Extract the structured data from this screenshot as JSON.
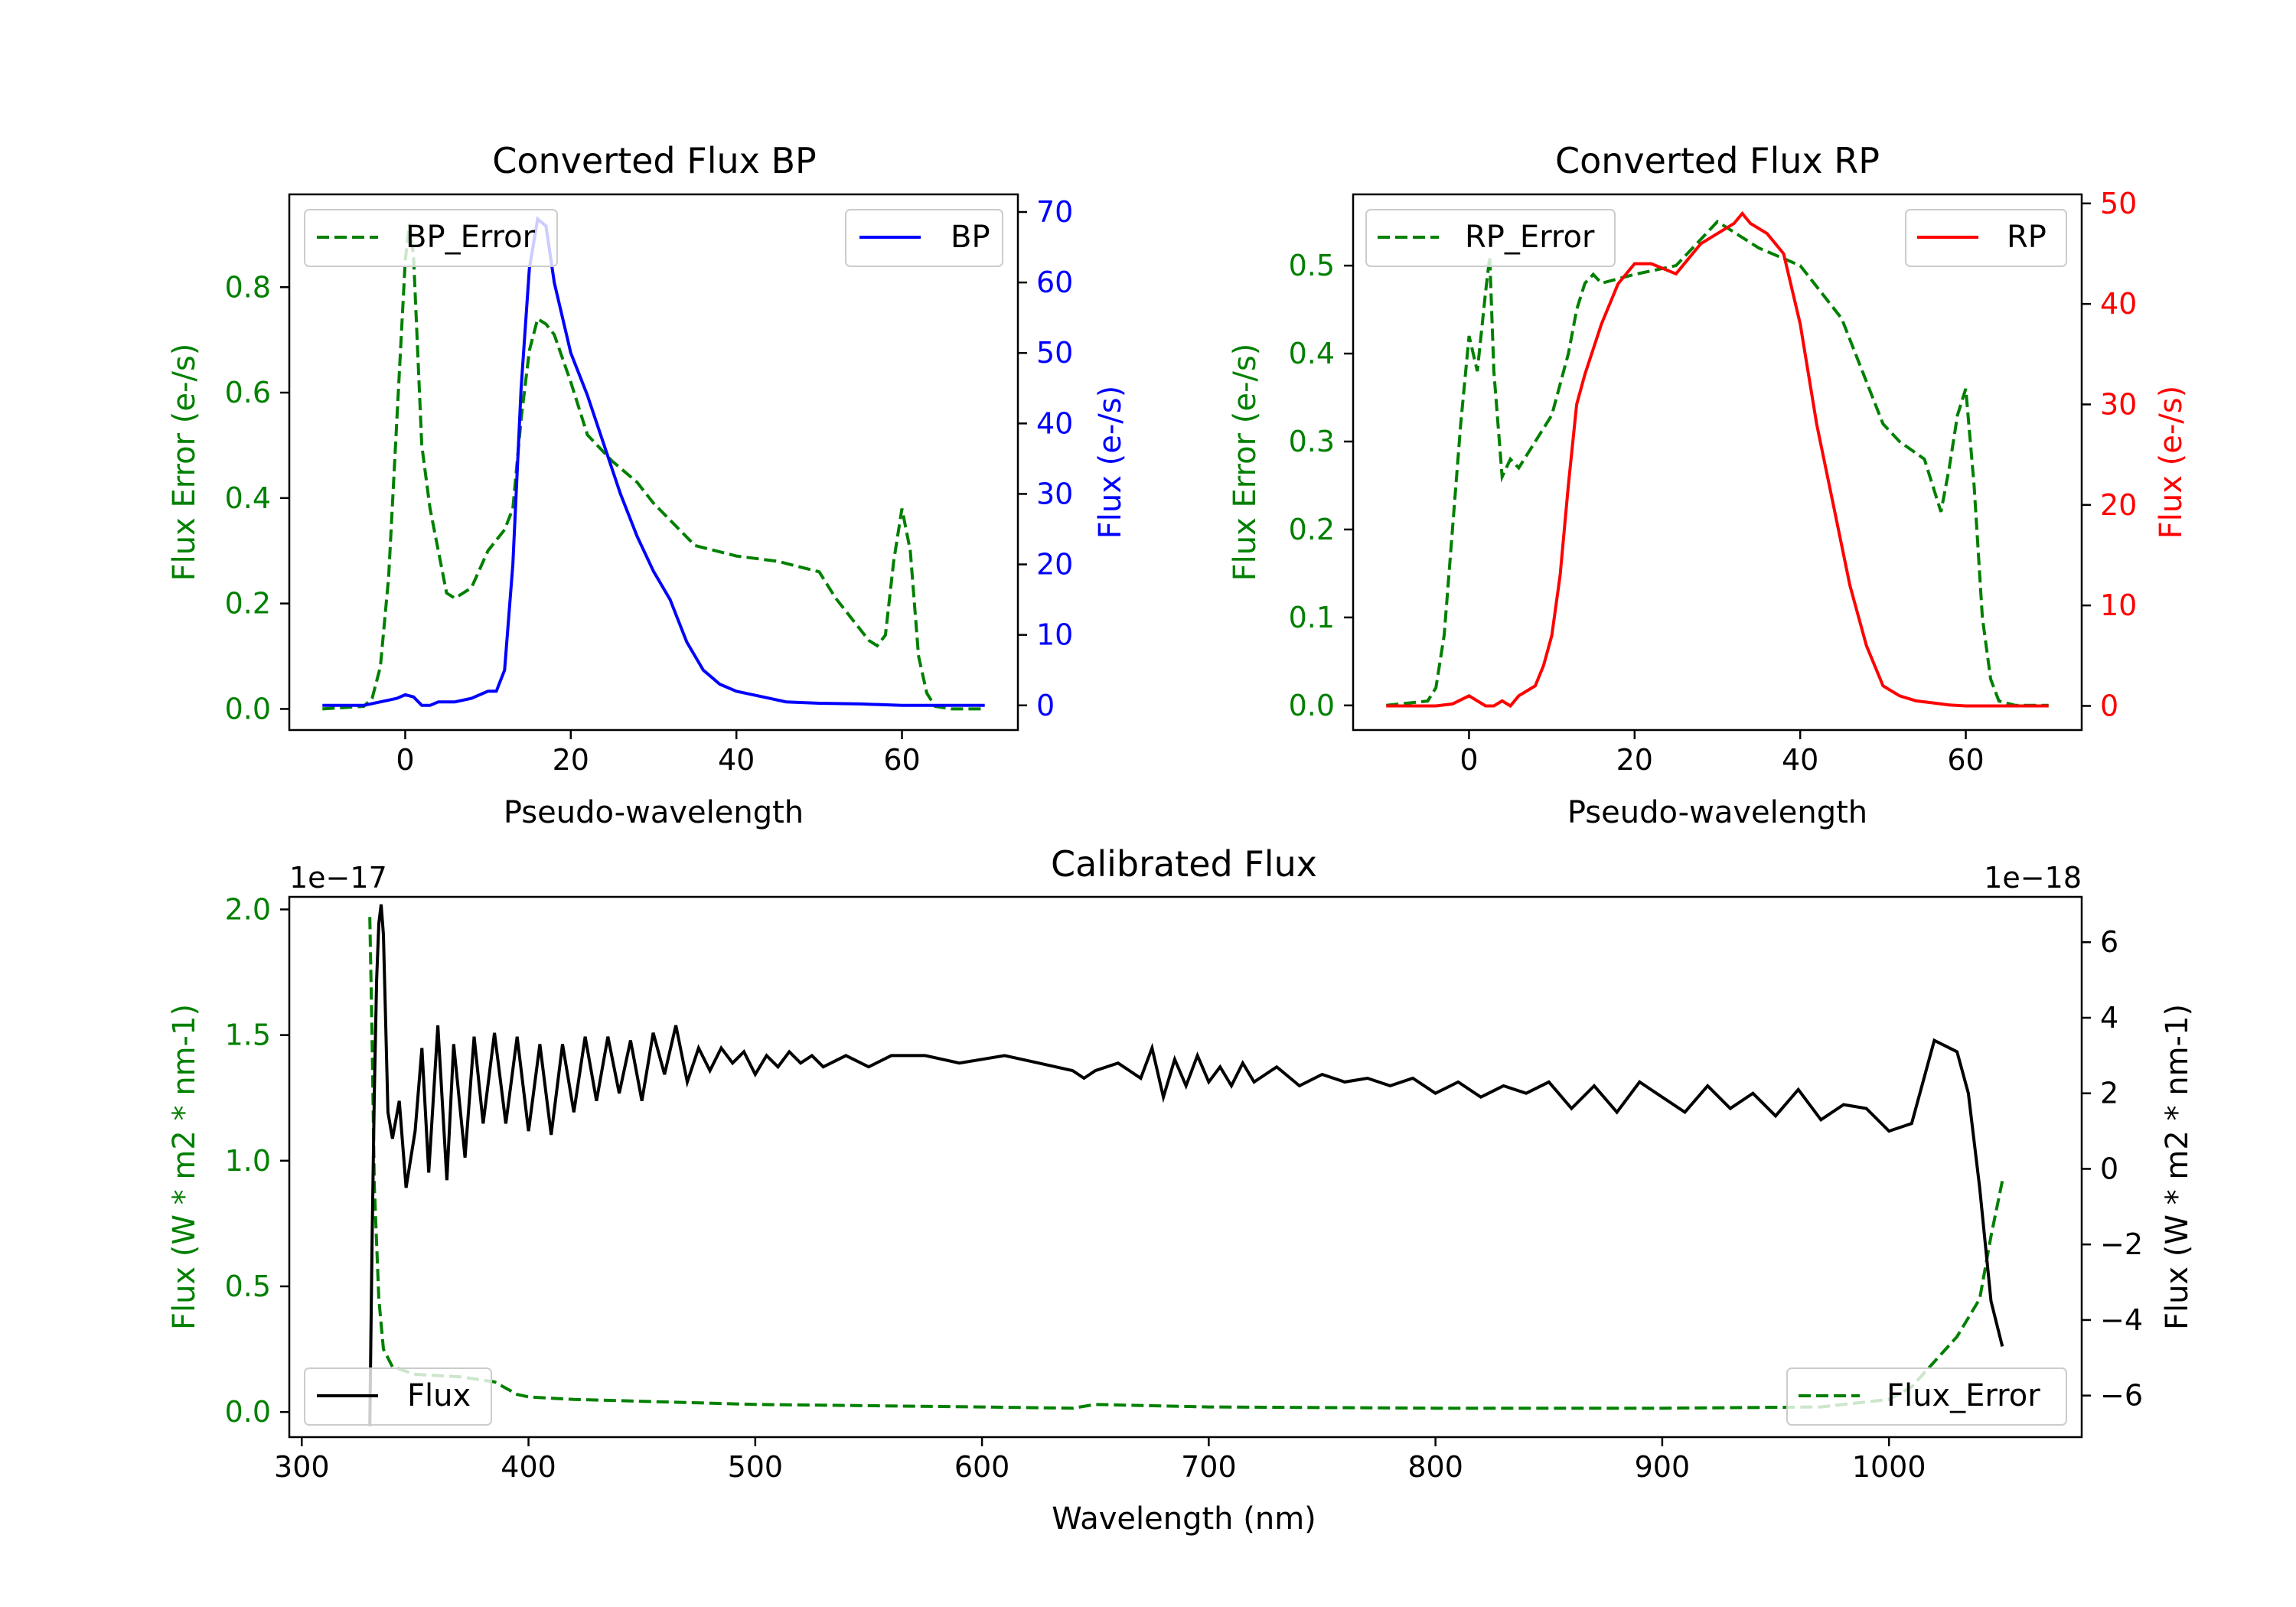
{
  "colors": {
    "bp": "#0000ff",
    "rp": "#ff0000",
    "error": "#008000",
    "flux": "#000000",
    "axis": "#000000"
  },
  "chart_data": [
    {
      "id": "bp",
      "type": "line",
      "title": "Converted Flux BP",
      "xlabel": "Pseudo-wavelength",
      "xlim": [
        -14,
        74
      ],
      "xticks": [
        0,
        20,
        40,
        60
      ],
      "left_axis": {
        "label": "Flux Error (e-/s)",
        "lim": [
          -0.04,
          0.976
        ],
        "ticks": [
          0.0,
          0.2,
          0.4,
          0.6,
          0.8
        ],
        "tick_labels": [
          "0.0",
          "0.2",
          "0.4",
          "0.6",
          "0.8"
        ]
      },
      "right_axis": {
        "label": "Flux (e-/s)",
        "lim": [
          -3.5,
          72.5
        ],
        "ticks": [
          0,
          10,
          20,
          30,
          40,
          50,
          60,
          70
        ],
        "tick_labels": [
          "0",
          "10",
          "20",
          "30",
          "40",
          "50",
          "60",
          "70"
        ]
      },
      "legend_left": {
        "label": "BP_Error",
        "position": "upper-left"
      },
      "legend_right": {
        "label": "BP",
        "position": "upper-right"
      },
      "series": [
        {
          "name": "BP_Error",
          "axis": "left",
          "style": "dashed",
          "x": [
            -10,
            -5,
            -4,
            -3,
            -2,
            -1,
            0,
            0.5,
            1,
            2,
            3,
            4,
            5,
            6,
            8,
            10,
            12,
            13,
            14,
            15,
            16,
            17,
            18,
            20,
            22,
            25,
            28,
            30,
            35,
            40,
            45,
            50,
            52,
            54,
            56,
            57,
            58,
            59,
            60,
            61,
            62,
            63,
            64,
            66,
            68,
            70
          ],
          "y": [
            0.0,
            0.005,
            0.02,
            0.08,
            0.25,
            0.55,
            0.85,
            0.92,
            0.86,
            0.5,
            0.38,
            0.3,
            0.22,
            0.21,
            0.23,
            0.3,
            0.34,
            0.38,
            0.55,
            0.68,
            0.74,
            0.73,
            0.71,
            0.62,
            0.52,
            0.47,
            0.43,
            0.39,
            0.31,
            0.29,
            0.28,
            0.26,
            0.21,
            0.17,
            0.13,
            0.12,
            0.14,
            0.28,
            0.38,
            0.3,
            0.1,
            0.03,
            0.005,
            0.0,
            0.0,
            0.0
          ]
        },
        {
          "name": "BP",
          "axis": "right",
          "style": "solid",
          "x": [
            -10,
            -5,
            -3,
            -1,
            0,
            1,
            2,
            3,
            4,
            6,
            8,
            10,
            11,
            12,
            13,
            14,
            15,
            16,
            17,
            18,
            19,
            20,
            22,
            24,
            26,
            28,
            30,
            32,
            34,
            36,
            38,
            40,
            42,
            44,
            46,
            50,
            55,
            60,
            65,
            70
          ],
          "y": [
            0,
            0,
            0.5,
            1,
            1.5,
            1.2,
            0,
            0,
            0.5,
            0.5,
            1,
            2,
            2,
            5,
            20,
            45,
            62,
            69,
            68,
            60,
            55,
            50,
            44,
            37,
            30,
            24,
            19,
            15,
            9,
            5,
            3,
            2,
            1.5,
            1,
            0.5,
            0.3,
            0.2,
            0,
            0,
            0
          ]
        }
      ]
    },
    {
      "id": "rp",
      "type": "line",
      "title": "Converted Flux RP",
      "xlabel": "Pseudo-wavelength",
      "xlim": [
        -14,
        74
      ],
      "xticks": [
        0,
        20,
        40,
        60
      ],
      "left_axis": {
        "label": "Flux Error (e-/s)",
        "lim": [
          -0.028,
          0.581
        ],
        "ticks": [
          0.0,
          0.1,
          0.2,
          0.3,
          0.4,
          0.5
        ],
        "tick_labels": [
          "0.0",
          "0.1",
          "0.2",
          "0.3",
          "0.4",
          "0.5"
        ]
      },
      "right_axis": {
        "label": "Flux (e-/s)",
        "lim": [
          -2.4,
          50.9
        ],
        "ticks": [
          0,
          10,
          20,
          30,
          40,
          50
        ],
        "tick_labels": [
          "0",
          "10",
          "20",
          "30",
          "40",
          "50"
        ]
      },
      "legend_left": {
        "label": "RP_Error",
        "position": "upper-left"
      },
      "legend_right": {
        "label": "RP",
        "position": "upper-right"
      },
      "series": [
        {
          "name": "RP_Error",
          "axis": "left",
          "style": "dashed",
          "x": [
            -10,
            -5,
            -4,
            -3,
            -2,
            -1,
            0,
            1,
            2,
            2.5,
            3,
            4,
            5,
            6,
            8,
            10,
            12,
            13,
            14,
            15,
            16,
            20,
            25,
            28,
            30,
            35,
            40,
            45,
            50,
            52,
            55,
            56,
            57,
            58,
            59,
            60,
            61,
            62,
            63,
            64,
            66,
            70
          ],
          "y": [
            0.0,
            0.005,
            0.02,
            0.08,
            0.2,
            0.32,
            0.42,
            0.38,
            0.47,
            0.51,
            0.38,
            0.26,
            0.28,
            0.27,
            0.3,
            0.33,
            0.4,
            0.45,
            0.48,
            0.49,
            0.48,
            0.49,
            0.5,
            0.53,
            0.55,
            0.52,
            0.5,
            0.44,
            0.32,
            0.3,
            0.28,
            0.25,
            0.22,
            0.27,
            0.33,
            0.36,
            0.25,
            0.1,
            0.03,
            0.005,
            0.0,
            0.0
          ]
        },
        {
          "name": "RP",
          "axis": "right",
          "style": "solid",
          "x": [
            -10,
            -4,
            -2,
            0,
            2,
            3,
            4,
            5,
            6,
            8,
            9,
            10,
            11,
            12,
            13,
            14,
            16,
            18,
            20,
            22,
            25,
            28,
            30,
            32,
            33,
            34,
            36,
            38,
            40,
            42,
            44,
            46,
            48,
            50,
            52,
            54,
            56,
            58,
            60,
            65,
            70
          ],
          "y": [
            0,
            0,
            0.2,
            1,
            0,
            0,
            0.5,
            0,
            1,
            2,
            4,
            7,
            13,
            22,
            30,
            33,
            38,
            42,
            44,
            44,
            43,
            46,
            47,
            48,
            49,
            48,
            47,
            45,
            38,
            28,
            20,
            12,
            6,
            2,
            1,
            0.5,
            0.3,
            0.1,
            0,
            0,
            0
          ]
        }
      ]
    },
    {
      "id": "calibrated",
      "type": "line",
      "title": "Calibrated Flux",
      "xlabel": "Wavelength (nm)",
      "xlim": [
        294.5,
        1085
      ],
      "xticks": [
        300,
        400,
        500,
        600,
        700,
        800,
        900,
        1000
      ],
      "left_axis": {
        "label": "Flux (W * m2 * nm-1)",
        "offset_text": "1e−17",
        "lim": [
          -0.1,
          2.05
        ],
        "ticks": [
          0.0,
          0.5,
          1.0,
          1.5,
          2.0
        ],
        "tick_labels": [
          "0.0",
          "0.5",
          "1.0",
          "1.5",
          "2.0"
        ]
      },
      "right_axis": {
        "label": "Flux (W * m2 * nm-1)",
        "offset_text": "1e−18",
        "lim": [
          -7.1,
          7.2
        ],
        "ticks": [
          -6,
          -4,
          -2,
          0,
          2,
          4,
          6
        ],
        "tick_labels": [
          "−6",
          "−4",
          "−2",
          "0",
          "2",
          "4",
          "6"
        ]
      },
      "legend_left": {
        "label": "Flux",
        "position": "lower-left"
      },
      "legend_right": {
        "label": "Flux_Error",
        "position": "lower-right"
      },
      "series": [
        {
          "name": "Flux_Error",
          "axis": "left",
          "style": "dashed",
          "x": [
            330,
            331,
            332,
            334,
            336,
            340,
            350,
            370,
            385,
            395,
            400,
            420,
            500,
            600,
            640,
            650,
            700,
            800,
            900,
            970,
            1000,
            1010,
            1020,
            1030,
            1040,
            1045,
            1050
          ],
          "y": [
            1.97,
            1.5,
            0.9,
            0.45,
            0.25,
            0.18,
            0.15,
            0.14,
            0.12,
            0.07,
            0.06,
            0.05,
            0.03,
            0.02,
            0.015,
            0.03,
            0.02,
            0.015,
            0.015,
            0.02,
            0.05,
            0.1,
            0.2,
            0.3,
            0.45,
            0.7,
            0.92
          ]
        },
        {
          "name": "Flux",
          "axis": "right",
          "style": "solid",
          "x": [
            330,
            331,
            332,
            333,
            334,
            335,
            336,
            338,
            340,
            343,
            346,
            350,
            353,
            356,
            360,
            364,
            367,
            372,
            376,
            380,
            385,
            390,
            395,
            400,
            405,
            410,
            415,
            420,
            425,
            430,
            435,
            440,
            445,
            450,
            455,
            460,
            465,
            470,
            475,
            480,
            485,
            490,
            495,
            500,
            505,
            510,
            515,
            520,
            525,
            530,
            540,
            550,
            560,
            575,
            590,
            610,
            625,
            640,
            645,
            650,
            660,
            670,
            675,
            680,
            685,
            690,
            695,
            700,
            705,
            710,
            715,
            720,
            730,
            740,
            750,
            760,
            770,
            780,
            790,
            800,
            810,
            820,
            830,
            840,
            850,
            860,
            870,
            880,
            890,
            900,
            910,
            920,
            930,
            940,
            950,
            960,
            970,
            980,
            990,
            1000,
            1010,
            1020,
            1030,
            1035,
            1040,
            1045,
            1050
          ],
          "y": [
            -6.8,
            -2,
            2,
            5,
            6.5,
            7,
            6.2,
            1.5,
            0.8,
            1.8,
            -0.5,
            1,
            3.2,
            -0.1,
            3.8,
            -0.3,
            3.3,
            0.3,
            3.5,
            1.2,
            3.6,
            1.2,
            3.5,
            1.0,
            3.3,
            0.9,
            3.3,
            1.5,
            3.5,
            1.8,
            3.5,
            2.0,
            3.4,
            1.8,
            3.6,
            2.5,
            3.8,
            2.3,
            3.2,
            2.6,
            3.2,
            2.8,
            3.1,
            2.5,
            3.0,
            2.7,
            3.1,
            2.8,
            3.0,
            2.7,
            3.0,
            2.7,
            3.0,
            3.0,
            2.8,
            3.0,
            2.8,
            2.6,
            2.4,
            2.6,
            2.8,
            2.4,
            3.2,
            1.9,
            2.9,
            2.2,
            3.0,
            2.3,
            2.7,
            2.2,
            2.8,
            2.3,
            2.7,
            2.2,
            2.5,
            2.3,
            2.4,
            2.2,
            2.4,
            2.0,
            2.3,
            1.9,
            2.2,
            2.0,
            2.3,
            1.6,
            2.2,
            1.5,
            2.3,
            1.9,
            1.5,
            2.2,
            1.6,
            2.0,
            1.4,
            2.1,
            1.3,
            1.7,
            1.6,
            1.0,
            1.2,
            3.4,
            3.1,
            2.0,
            -0.5,
            -3.5,
            -4.7
          ]
        }
      ]
    }
  ]
}
